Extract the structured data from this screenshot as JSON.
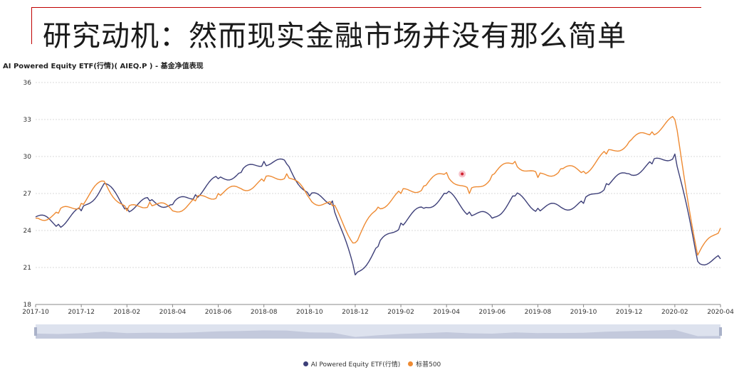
{
  "slide_title": "研究动机：然而现实金融市场并没有那么简单",
  "colors": {
    "accent": "#c00000",
    "series1": "#3d3f78",
    "series2": "#ee8a32"
  },
  "chart_data": {
    "type": "line",
    "title": "AI Powered Equity ETF(行情)( AIEQ.P ) - 基金净值表现",
    "x_tick_labels": [
      "2017-10",
      "2017-12",
      "2018-02",
      "2018-04",
      "2018-06",
      "2018-08",
      "2018-10",
      "2018-12",
      "2019-02",
      "2019-04",
      "2019-06",
      "2019-08",
      "2019-10",
      "2019-12",
      "2020-02",
      "2020-04"
    ],
    "y_tick_labels": [
      "18",
      "21",
      "24",
      "27",
      "30",
      "33",
      "36"
    ],
    "ylim": [
      18,
      36
    ],
    "xlim": [
      "2017-10",
      "2020-04"
    ],
    "grid": true,
    "legend_position": "bottom-center",
    "series": [
      {
        "name": "AI Powered Equity ETF(行情)",
        "color": "#3d3f78",
        "x": [
          "2017-10",
          "2017-11",
          "2017-12",
          "2018-01",
          "2018-02",
          "2018-03",
          "2018-04",
          "2018-05",
          "2018-06",
          "2018-07",
          "2018-08",
          "2018-09",
          "2018-10",
          "2018-11",
          "2018-12",
          "2019-01",
          "2019-02",
          "2019-03",
          "2019-04",
          "2019-05",
          "2019-06",
          "2019-07",
          "2019-08",
          "2019-09",
          "2019-10",
          "2019-11",
          "2019-12",
          "2020-01",
          "2020-02",
          "2020-03",
          "2020-04"
        ],
        "values": [
          25.1,
          24.5,
          25.6,
          27.8,
          25.8,
          26.4,
          26.1,
          26.9,
          28.2,
          28.7,
          29.6,
          29.4,
          26.8,
          26.4,
          20.4,
          22.7,
          24.6,
          25.8,
          27.0,
          25.5,
          25.0,
          26.8,
          25.8,
          25.9,
          26.2,
          27.8,
          28.6,
          29.4,
          30.2,
          21.5,
          21.7
        ]
      },
      {
        "name": "标普500",
        "color": "#ee8a32",
        "x": [
          "2017-10",
          "2017-11",
          "2017-12",
          "2018-01",
          "2018-02",
          "2018-03",
          "2018-04",
          "2018-05",
          "2018-06",
          "2018-07",
          "2018-08",
          "2018-09",
          "2018-10",
          "2018-11",
          "2018-12",
          "2019-01",
          "2019-02",
          "2019-03",
          "2019-04",
          "2019-05",
          "2019-06",
          "2019-07",
          "2019-08",
          "2019-09",
          "2019-10",
          "2019-11",
          "2019-12",
          "2020-01",
          "2020-02",
          "2020-03",
          "2020-04"
        ],
        "values": [
          25.0,
          25.4,
          26.2,
          28.0,
          25.6,
          26.3,
          25.6,
          26.4,
          27.0,
          27.4,
          28.0,
          28.6,
          26.6,
          26.0,
          23.0,
          25.9,
          27.0,
          27.6,
          28.7,
          27.0,
          28.5,
          29.6,
          28.3,
          29.0,
          28.8,
          30.2,
          31.2,
          32.0,
          33.0,
          22.0,
          24.2
        ]
      }
    ]
  }
}
